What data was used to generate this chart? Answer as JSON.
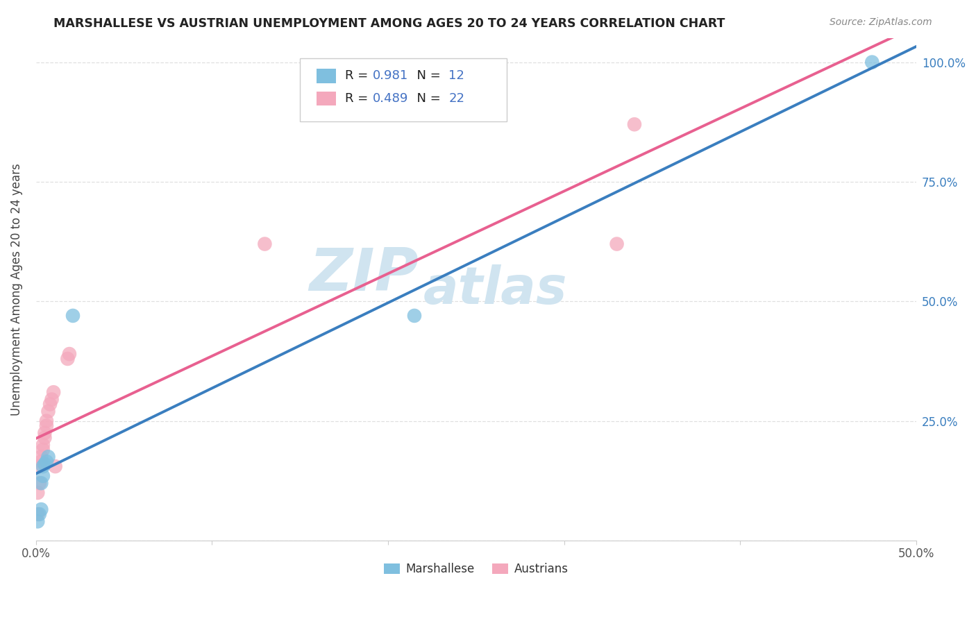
{
  "title": "MARSHALLESE VS AUSTRIAN UNEMPLOYMENT AMONG AGES 20 TO 24 YEARS CORRELATION CHART",
  "source": "Source: ZipAtlas.com",
  "ylabel": "Unemployment Among Ages 20 to 24 years",
  "xlim": [
    0.0,
    0.5
  ],
  "ylim": [
    0.0,
    1.05
  ],
  "xtick_positions": [
    0.0,
    0.1,
    0.2,
    0.3,
    0.4,
    0.5
  ],
  "xtick_labels": [
    "0.0%",
    "",
    "",
    "",
    "",
    "50.0%"
  ],
  "ytick_positions": [
    0.0,
    0.25,
    0.5,
    0.75,
    1.0
  ],
  "ytick_labels_right": [
    "",
    "25.0%",
    "50.0%",
    "75.0%",
    "100.0%"
  ],
  "marshallese_color": "#7fbfdf",
  "austrians_color": "#f4a8bc",
  "marshallese_line_color": "#3a7ebf",
  "austrians_line_color": "#e86090",
  "legend_r_marshallese": "0.981",
  "legend_n_marshallese": "12",
  "legend_r_austrians": "0.489",
  "legend_n_austrians": "22",
  "legend_color_r": "#4472c4",
  "legend_color_n": "#4472c4",
  "watermark_line1": "ZIP",
  "watermark_line2": "atlas",
  "watermark_color": "#d0e4f0",
  "marshallese_x": [
    0.001,
    0.002,
    0.003,
    0.003,
    0.004,
    0.004,
    0.005,
    0.006,
    0.007,
    0.021,
    0.215,
    0.475
  ],
  "marshallese_y": [
    0.04,
    0.055,
    0.065,
    0.12,
    0.135,
    0.155,
    0.16,
    0.165,
    0.175,
    0.47,
    0.47,
    1.0
  ],
  "austrians_x": [
    0.001,
    0.001,
    0.002,
    0.002,
    0.003,
    0.003,
    0.004,
    0.004,
    0.005,
    0.005,
    0.006,
    0.006,
    0.007,
    0.008,
    0.009,
    0.01,
    0.011,
    0.018,
    0.019,
    0.13,
    0.33,
    0.34
  ],
  "austrians_y": [
    0.055,
    0.1,
    0.12,
    0.155,
    0.165,
    0.175,
    0.19,
    0.2,
    0.215,
    0.225,
    0.24,
    0.25,
    0.27,
    0.285,
    0.295,
    0.31,
    0.155,
    0.38,
    0.39,
    0.62,
    0.62,
    0.87
  ],
  "grid_color": "#e0e0e0",
  "spine_color": "#cccccc",
  "tick_color": "#999999",
  "background": "#ffffff"
}
